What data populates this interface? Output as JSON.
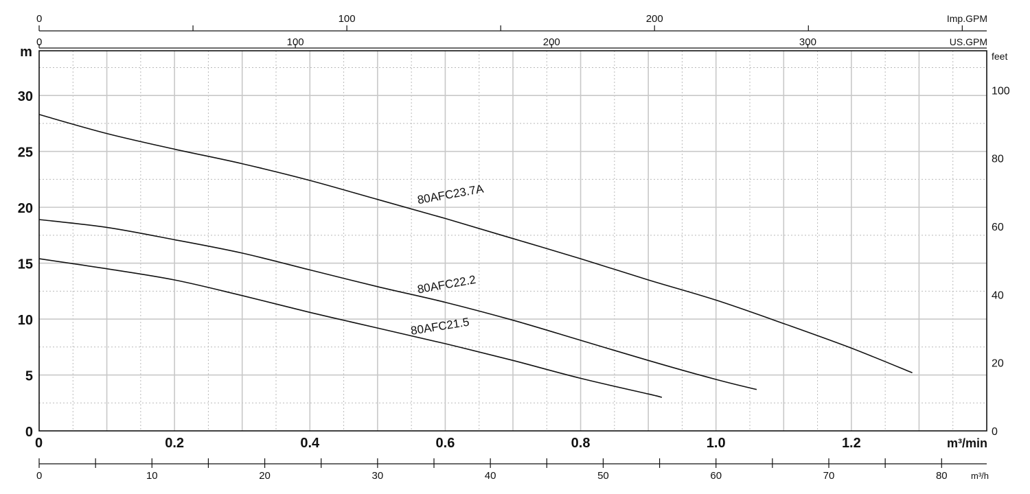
{
  "chart_data": {
    "type": "line",
    "title": "",
    "x": {
      "label": "m³/min",
      "ticks": [
        0,
        0.2,
        0.4,
        0.6,
        0.8,
        1.0,
        1.2
      ],
      "tick_labels": [
        "0",
        "0.2",
        "0.4",
        "0.6",
        "0.8",
        "1.0",
        "1.2"
      ],
      "range": [
        0,
        1.4
      ],
      "grid": true
    },
    "y": {
      "label": "m",
      "ticks": [
        0,
        5,
        10,
        15,
        20,
        25,
        30
      ],
      "tick_labels": [
        "0",
        "5",
        "10",
        "15",
        "20",
        "25",
        "30"
      ],
      "range": [
        0,
        34
      ],
      "grid": true
    },
    "y2": {
      "label": "feet",
      "ticks": [
        0,
        20,
        40,
        60,
        80,
        100
      ],
      "tick_labels": [
        "0",
        "20",
        "40",
        "60",
        "80",
        "100"
      ],
      "unit_per_m": 3.2808
    },
    "top_axes": [
      {
        "label": "Imp.GPM",
        "ticks": [
          0,
          100,
          200
        ],
        "tick_labels": [
          "0",
          "100",
          "200"
        ],
        "minor_step": 50,
        "unit_per_m3min": 219.97
      },
      {
        "label": "US.GPM",
        "ticks": [
          0,
          100,
          200,
          300
        ],
        "tick_labels": [
          "0",
          "100",
          "200",
          "300"
        ],
        "unit_per_m3min": 264.17
      }
    ],
    "bottom_axis2": {
      "label": "m³/h",
      "ticks": [
        0,
        10,
        20,
        30,
        40,
        50,
        60,
        70,
        80
      ],
      "tick_labels": [
        "0",
        "10",
        "20",
        "30",
        "40",
        "50",
        "60",
        "70",
        "80"
      ],
      "minor_step": 5,
      "unit_per_m3min": 60
    },
    "series": [
      {
        "name": "80AFC23.7A",
        "x": [
          0,
          0.1,
          0.2,
          0.3,
          0.4,
          0.5,
          0.6,
          0.7,
          0.8,
          0.9,
          1.0,
          1.1,
          1.2,
          1.29
        ],
        "y": [
          28.3,
          26.6,
          25.2,
          23.9,
          22.4,
          20.7,
          19.0,
          17.2,
          15.4,
          13.5,
          11.7,
          9.6,
          7.4,
          5.2
        ]
      },
      {
        "name": "80AFC22.2",
        "x": [
          0,
          0.1,
          0.2,
          0.3,
          0.4,
          0.5,
          0.6,
          0.7,
          0.8,
          0.9,
          1.0,
          1.06
        ],
        "y": [
          18.9,
          18.2,
          17.1,
          15.9,
          14.4,
          12.9,
          11.5,
          9.9,
          8.1,
          6.3,
          4.6,
          3.7
        ]
      },
      {
        "name": "80AFC21.5",
        "x": [
          0,
          0.1,
          0.2,
          0.3,
          0.4,
          0.5,
          0.6,
          0.7,
          0.8,
          0.9,
          0.92
        ],
        "y": [
          15.4,
          14.5,
          13.5,
          12.1,
          10.6,
          9.2,
          7.8,
          6.3,
          4.7,
          3.3,
          3.0
        ]
      }
    ],
    "series_labels": [
      {
        "text": "80AFC23.7A",
        "x": 0.56,
        "y": 20.3,
        "angle": -10
      },
      {
        "text": "80AFC22.2",
        "x": 0.56,
        "y": 12.3,
        "angle": -10
      },
      {
        "text": "80AFC21.5",
        "x": 0.55,
        "y": 8.6,
        "angle": -9
      }
    ],
    "legend": "none"
  }
}
